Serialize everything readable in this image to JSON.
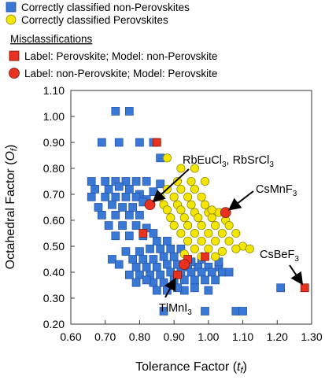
{
  "chart_data": {
    "type": "scatter",
    "xlabel": "Tolerance Factor (t_f)",
    "xlabel_main": "Tolerance Factor (",
    "xlabel_sym": "t",
    "xlabel_sub": "f",
    "xlabel_close": ")",
    "ylabel": "Octahedral Factor (O_f)",
    "ylabel_main": "Octahedral Factor (",
    "ylabel_sym": "O",
    "ylabel_sub": "f",
    "ylabel_close": ")",
    "xlim": [
      0.6,
      1.3
    ],
    "ylim": [
      0.2,
      1.1
    ],
    "xticks": [
      "0.60",
      "0.70",
      "0.80",
      "0.90",
      "1.00",
      "1.10",
      "1.20",
      "1.30"
    ],
    "yticks": [
      "0.20",
      "0.30",
      "0.40",
      "0.50",
      "0.60",
      "0.70",
      "0.80",
      "0.90",
      "1.00",
      "1.10"
    ],
    "grid": false,
    "legend_position": "top-left",
    "legend_heading": "Misclassifications",
    "series": [
      {
        "name": "Correctly classified non-Perovskites",
        "marker": "square",
        "color": "#3a78d6",
        "points": [
          [
            0.73,
            1.02
          ],
          [
            0.77,
            1.02
          ],
          [
            0.69,
            0.9
          ],
          [
            0.74,
            0.9
          ],
          [
            0.8,
            0.9
          ],
          [
            0.84,
            0.9
          ],
          [
            0.86,
            0.84
          ],
          [
            0.66,
            0.75
          ],
          [
            0.7,
            0.75
          ],
          [
            0.73,
            0.75
          ],
          [
            0.76,
            0.75
          ],
          [
            0.79,
            0.75
          ],
          [
            0.82,
            0.75
          ],
          [
            0.86,
            0.74
          ],
          [
            0.67,
            0.72
          ],
          [
            0.71,
            0.72
          ],
          [
            0.74,
            0.73
          ],
          [
            0.77,
            0.72
          ],
          [
            0.8,
            0.7
          ],
          [
            0.84,
            0.71
          ],
          [
            0.66,
            0.69
          ],
          [
            0.7,
            0.69
          ],
          [
            0.73,
            0.69
          ],
          [
            0.76,
            0.69
          ],
          [
            0.79,
            0.69
          ],
          [
            0.82,
            0.68
          ],
          [
            0.68,
            0.65
          ],
          [
            0.72,
            0.66
          ],
          [
            0.75,
            0.65
          ],
          [
            0.78,
            0.65
          ],
          [
            0.81,
            0.67
          ],
          [
            0.69,
            0.62
          ],
          [
            0.73,
            0.62
          ],
          [
            0.77,
            0.62
          ],
          [
            0.8,
            0.62
          ],
          [
            0.71,
            0.58
          ],
          [
            0.75,
            0.58
          ],
          [
            0.79,
            0.58
          ],
          [
            0.82,
            0.57
          ],
          [
            0.73,
            0.54
          ],
          [
            0.77,
            0.54
          ],
          [
            0.81,
            0.54
          ],
          [
            0.84,
            0.55
          ],
          [
            0.85,
            0.52
          ],
          [
            0.88,
            0.52
          ],
          [
            0.83,
            0.49
          ],
          [
            0.86,
            0.49
          ],
          [
            0.89,
            0.49
          ],
          [
            0.76,
            0.48
          ],
          [
            0.8,
            0.48
          ],
          [
            0.72,
            0.45
          ],
          [
            0.78,
            0.45
          ],
          [
            0.81,
            0.45
          ],
          [
            0.84,
            0.45
          ],
          [
            0.87,
            0.46
          ],
          [
            0.9,
            0.46
          ],
          [
            0.74,
            0.43
          ],
          [
            0.79,
            0.42
          ],
          [
            0.82,
            0.42
          ],
          [
            0.85,
            0.42
          ],
          [
            0.88,
            0.43
          ],
          [
            0.91,
            0.43
          ],
          [
            0.94,
            0.42
          ],
          [
            0.97,
            0.42
          ],
          [
            1.0,
            0.42
          ],
          [
            1.03,
            0.42
          ],
          [
            0.77,
            0.39
          ],
          [
            0.8,
            0.39
          ],
          [
            0.83,
            0.39
          ],
          [
            0.86,
            0.39
          ],
          [
            0.89,
            0.4
          ],
          [
            0.92,
            0.4
          ],
          [
            0.95,
            0.4
          ],
          [
            0.98,
            0.4
          ],
          [
            1.01,
            0.4
          ],
          [
            1.04,
            0.4
          ],
          [
            0.84,
            0.36
          ],
          [
            0.87,
            0.36
          ],
          [
            0.9,
            0.37
          ],
          [
            0.93,
            0.37
          ],
          [
            0.96,
            0.37
          ],
          [
            0.99,
            0.37
          ],
          [
            1.02,
            0.37
          ],
          [
            0.85,
            0.33
          ],
          [
            0.88,
            0.33
          ],
          [
            0.93,
            0.33
          ],
          [
            0.96,
            0.34
          ],
          [
            1.0,
            0.33
          ],
          [
            0.79,
            0.36
          ],
          [
            0.82,
            0.37
          ],
          [
            0.91,
            0.34
          ],
          [
            0.99,
            0.25
          ],
          [
            1.08,
            0.25
          ],
          [
            1.1,
            0.25
          ],
          [
            0.87,
            0.25
          ],
          [
            1.21,
            0.34
          ],
          [
            0.95,
            0.44
          ],
          [
            0.92,
            0.49
          ],
          [
            1.03,
            0.44
          ],
          [
            1.06,
            0.4
          ],
          [
            0.98,
            0.45
          ]
        ]
      },
      {
        "name": "Correctly classified Perovskites",
        "marker": "circle",
        "color": "#f2e600",
        "points": [
          [
            0.85,
            0.9
          ],
          [
            0.88,
            0.84
          ],
          [
            0.92,
            0.8
          ],
          [
            0.96,
            0.8
          ],
          [
            0.91,
            0.75
          ],
          [
            0.95,
            0.75
          ],
          [
            0.99,
            0.75
          ],
          [
            0.88,
            0.72
          ],
          [
            0.92,
            0.72
          ],
          [
            0.96,
            0.72
          ],
          [
            0.86,
            0.69
          ],
          [
            0.9,
            0.69
          ],
          [
            0.94,
            0.69
          ],
          [
            0.98,
            0.69
          ],
          [
            0.87,
            0.66
          ],
          [
            0.91,
            0.66
          ],
          [
            0.95,
            0.66
          ],
          [
            0.99,
            0.66
          ],
          [
            0.88,
            0.64
          ],
          [
            0.92,
            0.64
          ],
          [
            0.96,
            0.63
          ],
          [
            1.0,
            0.63
          ],
          [
            1.03,
            0.63
          ],
          [
            0.89,
            0.61
          ],
          [
            0.93,
            0.61
          ],
          [
            0.97,
            0.61
          ],
          [
            1.01,
            0.61
          ],
          [
            1.05,
            0.6
          ],
          [
            0.9,
            0.58
          ],
          [
            0.94,
            0.58
          ],
          [
            0.98,
            0.58
          ],
          [
            1.02,
            0.58
          ],
          [
            1.06,
            0.58
          ],
          [
            0.92,
            0.55
          ],
          [
            0.96,
            0.55
          ],
          [
            1.0,
            0.55
          ],
          [
            1.04,
            0.55
          ],
          [
            1.08,
            0.55
          ],
          [
            0.94,
            0.52
          ],
          [
            0.98,
            0.52
          ],
          [
            1.02,
            0.52
          ],
          [
            1.06,
            0.52
          ],
          [
            1.1,
            0.5
          ],
          [
            1.12,
            0.49
          ],
          [
            0.96,
            0.49
          ],
          [
            1.0,
            0.49
          ],
          [
            1.04,
            0.48
          ],
          [
            1.08,
            0.49
          ],
          [
            0.98,
            0.46
          ],
          [
            1.02,
            0.46
          ],
          [
            0.93,
            0.47
          ],
          [
            1.01,
            0.64
          ]
        ]
      },
      {
        "name": "Label: Perovskite; Model: non-Perovskite",
        "marker": "square",
        "color": "#e8311e",
        "points": [
          [
            0.85,
            0.9
          ],
          [
            0.81,
            0.55
          ],
          [
            0.94,
            0.45
          ],
          [
            0.91,
            0.39
          ],
          [
            0.99,
            0.46
          ],
          [
            1.28,
            0.34
          ]
        ]
      },
      {
        "name": "Label: non-Perovskite; Model: Perovskite",
        "marker": "circle",
        "color": "#e8311e",
        "points": [
          [
            0.83,
            0.66
          ],
          [
            1.05,
            0.63
          ],
          [
            0.93,
            0.43
          ]
        ]
      }
    ],
    "annotations": [
      {
        "label": "RbEuCl",
        "sub": "3",
        "rest": ", RbSrCl",
        "sub2": "3",
        "point": [
          0.83,
          0.66
        ]
      },
      {
        "label": "CsMnF",
        "sub": "3",
        "point": [
          1.05,
          0.63
        ]
      },
      {
        "label": "CsBeF",
        "sub": "3",
        "point": [
          1.28,
          0.34
        ]
      },
      {
        "label": "TlMnI",
        "sub": "3",
        "point": [
          0.91,
          0.39
        ]
      }
    ]
  }
}
